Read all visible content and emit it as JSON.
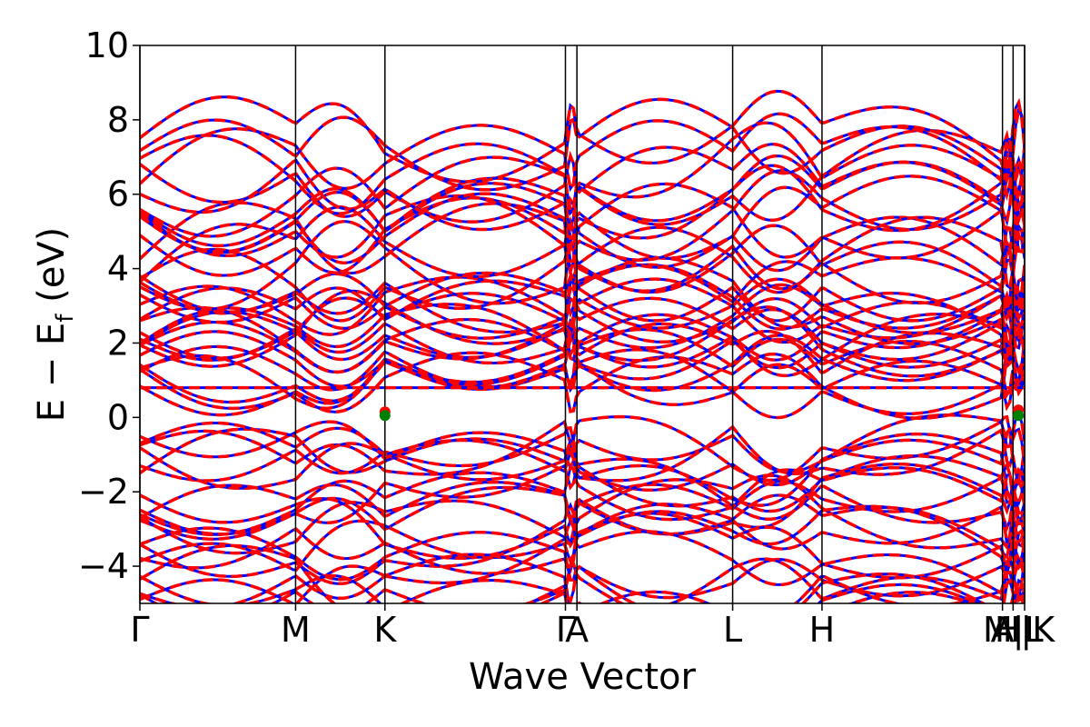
{
  "chart_data": {
    "type": "line",
    "title": "",
    "xlabel": "Wave Vector",
    "ylabel_main": "E − E",
    "ylabel_sub": "f",
    "ylabel_unit": " (eV)",
    "ylim": [
      -5,
      10
    ],
    "yticks": [
      -4,
      -2,
      0,
      2,
      4,
      6,
      8,
      10
    ],
    "ytick_labels": [
      "−4",
      "−2",
      "0",
      "2",
      "4",
      "6",
      "8",
      "10"
    ],
    "xlim": [
      0,
      1
    ],
    "kpoints": [
      {
        "label": "Γ",
        "x": 0.0
      },
      {
        "label": "M",
        "x": 0.176
      },
      {
        "label": "K",
        "x": 0.277
      },
      {
        "label": "Γ",
        "x": 0.481
      },
      {
        "label": "A",
        "x": 0.494
      },
      {
        "label": "L",
        "x": 0.67
      },
      {
        "label": "H",
        "x": 0.771
      },
      {
        "label": "A",
        "x": 0.975
      },
      {
        "label": "M|L",
        "x": 0.987
      },
      {
        "label": "H|K",
        "x": 1.0
      }
    ],
    "series": [
      {
        "style": "solid",
        "color": "#0000ff"
      },
      {
        "style": "dashed",
        "color": "#ff0000"
      }
    ],
    "conduction_band_min": 0.05,
    "valence_band_max": -0.1,
    "flat_band": 0.8,
    "markers": [
      {
        "x": 0.277,
        "y": 0.15,
        "color": "#ff0000"
      },
      {
        "x": 0.277,
        "y": 0.05,
        "color": "#008000"
      },
      {
        "x": 0.993,
        "y": 0.2,
        "color": "#ff0000"
      },
      {
        "x": 0.993,
        "y": 0.05,
        "color": "#008000"
      }
    ]
  }
}
